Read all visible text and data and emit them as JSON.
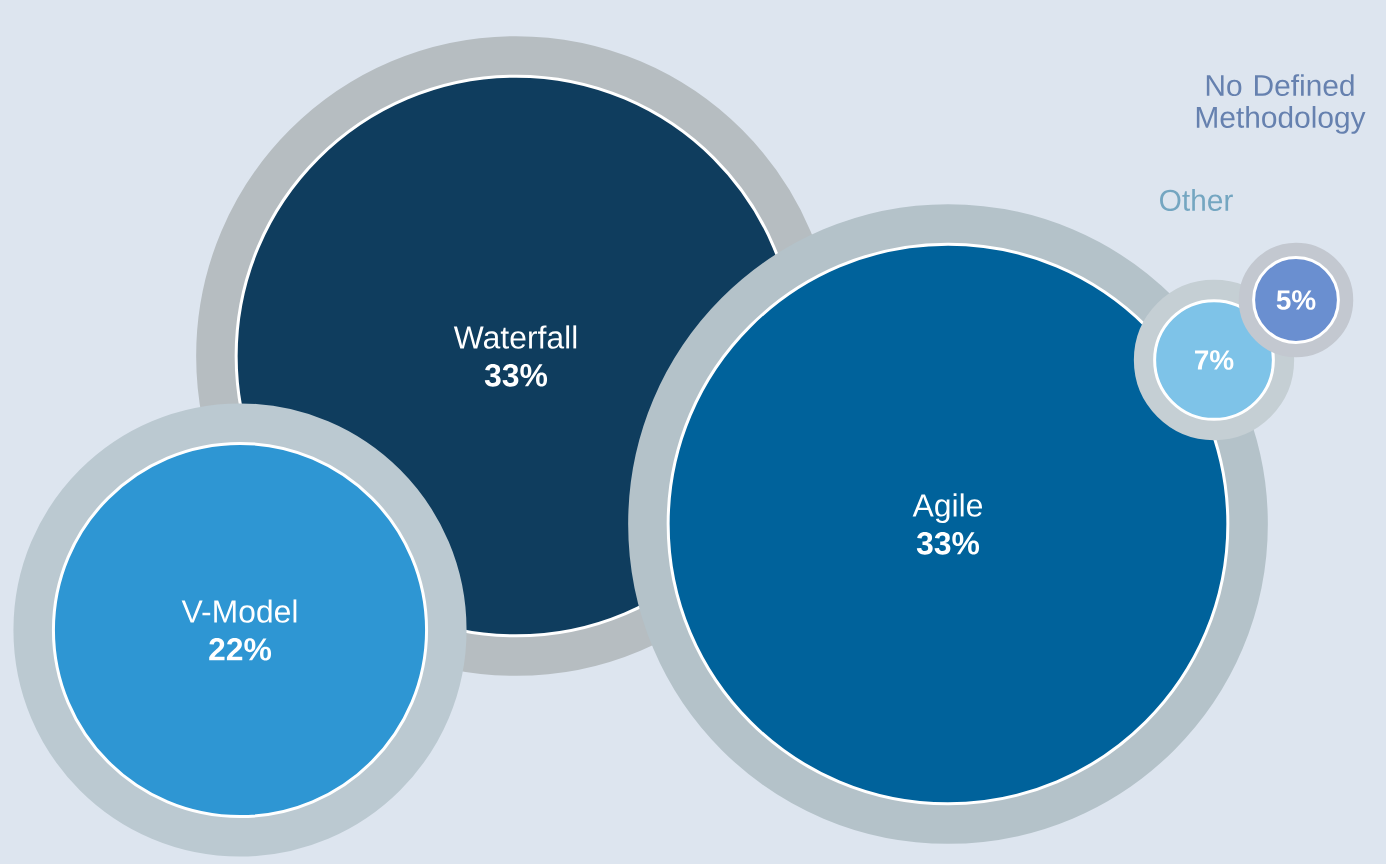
{
  "chart_data": {
    "type": "other",
    "categories": [
      "Waterfall",
      "Agile",
      "V-Model",
      "Other",
      "No Defined Methodology"
    ],
    "values": [
      33,
      33,
      22,
      7,
      5
    ],
    "value_labels": [
      "33%",
      "33%",
      "22%",
      "7%",
      "5%"
    ],
    "colors": [
      "#0f3d5e",
      "#00629b",
      "#2e96d3",
      "#7ec3e8",
      "#6a8fd0"
    ]
  }
}
